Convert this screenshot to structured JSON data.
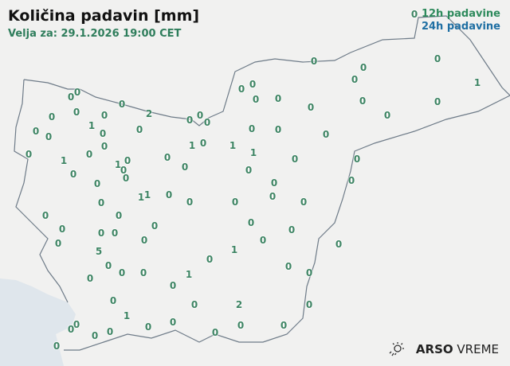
{
  "header": {
    "title": "Količina padavin [mm]",
    "valid": "Velja za: 29.1.2026 19:00 CET"
  },
  "legend": {
    "h12": "12h padavine",
    "h24": "24h padavine",
    "h12_color": "#2e8a5c",
    "h24_color": "#1f6fa3"
  },
  "colors": {
    "land": "#f1f1f0",
    "sea": "#dfe6ec",
    "border": "#6e7b88",
    "label": "#3d8463"
  },
  "stations": [
    "0",
    "0",
    "0",
    "2",
    "0",
    "0",
    "0",
    "0",
    "0",
    "0",
    "1",
    "0",
    "0",
    "0",
    "0",
    "0",
    "1",
    "0",
    "0",
    "0",
    "1",
    "0",
    "0",
    "0",
    "0",
    "0",
    "1",
    "0",
    "0",
    "0",
    "1",
    "1",
    "0",
    "0",
    "0",
    "0",
    "0",
    "0",
    "0",
    "0",
    "0",
    "0",
    "5",
    "0",
    "0",
    "0",
    "0",
    "0",
    "0",
    "1",
    "0",
    "1",
    "0",
    "0",
    "0",
    "0",
    "0",
    "0",
    "0",
    "0",
    "0",
    "2",
    "0",
    "0",
    "0",
    "0",
    "0",
    "1",
    "0",
    "0",
    "0",
    "0",
    "0",
    "0",
    "0",
    "0",
    "1",
    "1",
    "0",
    "0",
    "0",
    "0",
    "0",
    "0",
    "0",
    "0",
    "0",
    "0",
    "0",
    "0",
    "0",
    "0",
    "0",
    "0",
    "0",
    "0",
    "1",
    "0",
    "0",
    "1"
  ],
  "logo": {
    "brand": "ARSO",
    "product": "VREME",
    "icon": "sun-rain-icon"
  }
}
